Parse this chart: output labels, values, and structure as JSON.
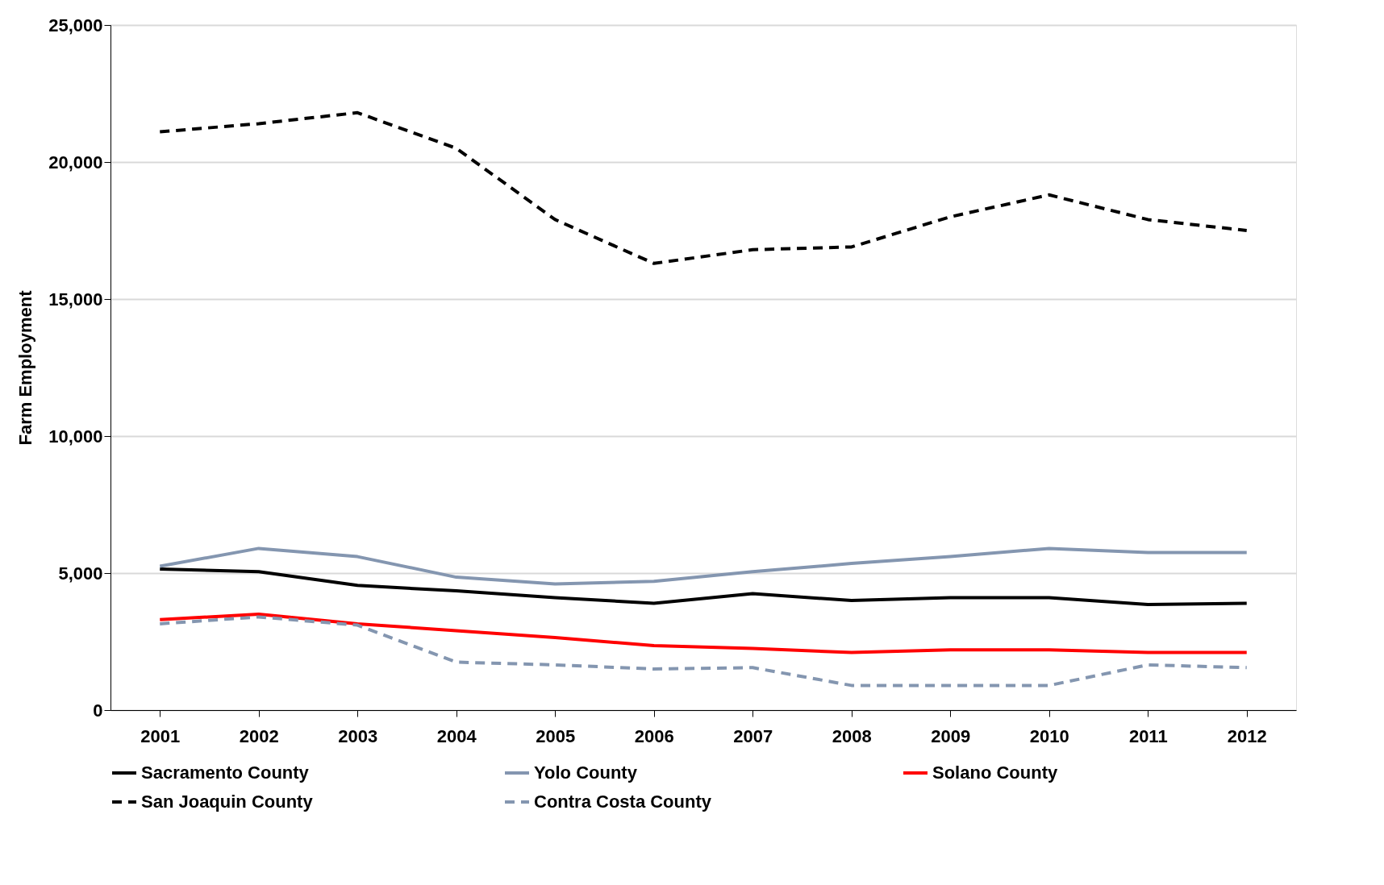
{
  "chart_data": {
    "type": "line",
    "ylabel": "Farm Employment",
    "categories": [
      "2001",
      "2002",
      "2003",
      "2004",
      "2005",
      "2006",
      "2007",
      "2008",
      "2009",
      "2010",
      "2011",
      "2012"
    ],
    "series": [
      {
        "name": "Sacramento County",
        "color": "#000000",
        "line_style": "solid",
        "values": [
          5150,
          5050,
          4550,
          4350,
          4100,
          3900,
          4250,
          4000,
          4100,
          4100,
          3850,
          3900
        ]
      },
      {
        "name": "Yolo County",
        "color": "#8496b0",
        "line_style": "solid",
        "values": [
          5250,
          5900,
          5600,
          4850,
          4600,
          4700,
          5050,
          5350,
          5600,
          5900,
          5750,
          5750
        ]
      },
      {
        "name": "Solano County",
        "color": "#ff0000",
        "line_style": "solid",
        "values": [
          3300,
          3500,
          3150,
          2900,
          2650,
          2350,
          2250,
          2100,
          2200,
          2200,
          2100,
          2100
        ]
      },
      {
        "name": "San Joaquin County",
        "color": "#000000",
        "line_style": "dashed",
        "values": [
          21100,
          21400,
          21800,
          20500,
          17900,
          16300,
          16800,
          16900,
          18000,
          18800,
          17900,
          17500
        ]
      },
      {
        "name": "Contra Costa County",
        "color": "#8496b0",
        "line_style": "dashed",
        "values": [
          3150,
          3400,
          3100,
          1750,
          1650,
          1500,
          1550,
          900,
          900,
          900,
          1650,
          1550
        ]
      }
    ],
    "ylim": [
      0,
      25000
    ],
    "yticks": [
      0,
      {
        "value": 5000,
        "label": "5,000"
      },
      {
        "value": 10000,
        "label": "10,000"
      },
      {
        "value": 15000,
        "label": "15,000"
      },
      {
        "value": 20000,
        "label": "20,000"
      },
      {
        "value": 25000,
        "label": "25,000"
      }
    ],
    "grid": "y",
    "legend": "bottom",
    "marker": "none"
  }
}
